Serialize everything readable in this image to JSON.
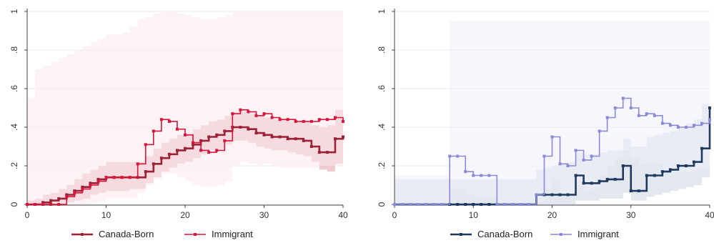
{
  "chart_data": [
    {
      "type": "line",
      "title": "",
      "xlabel": "",
      "ylabel": "",
      "xlim": [
        0,
        40
      ],
      "ylim": [
        0,
        1
      ],
      "xticks": [
        "0",
        "10",
        "20",
        "30",
        "40"
      ],
      "yticks": [
        "0",
        ".2",
        ".4",
        ".6",
        ".8",
        "1"
      ],
      "grid": true,
      "legend_position": "bottom",
      "series": [
        {
          "name": "Canada-Born",
          "color": "#9b2335",
          "band_color": "#e7b9bf",
          "x": [
            0,
            1,
            2,
            3,
            4,
            5,
            6,
            7,
            8,
            9,
            10,
            11,
            12,
            13,
            14,
            15,
            16,
            17,
            18,
            19,
            20,
            21,
            22,
            23,
            24,
            25,
            26,
            27,
            28,
            29,
            30,
            31,
            32,
            33,
            34,
            35,
            36,
            37,
            38,
            39,
            40
          ],
          "y": [
            0.0,
            0.0,
            0.01,
            0.02,
            0.03,
            0.05,
            0.07,
            0.09,
            0.11,
            0.13,
            0.14,
            0.14,
            0.14,
            0.14,
            0.14,
            0.17,
            0.21,
            0.24,
            0.26,
            0.28,
            0.29,
            0.31,
            0.33,
            0.35,
            0.36,
            0.38,
            0.4,
            0.4,
            0.39,
            0.37,
            0.36,
            0.35,
            0.35,
            0.34,
            0.34,
            0.33,
            0.3,
            0.27,
            0.27,
            0.34,
            0.35
          ],
          "ci_lower": [
            0.0,
            0.0,
            0.0,
            0.0,
            0.0,
            0.01,
            0.02,
            0.03,
            0.05,
            0.06,
            0.07,
            0.07,
            0.07,
            0.08,
            0.08,
            0.11,
            0.14,
            0.17,
            0.19,
            0.21,
            0.22,
            0.24,
            0.26,
            0.28,
            0.29,
            0.31,
            0.33,
            0.33,
            0.32,
            0.3,
            0.29,
            0.28,
            0.28,
            0.27,
            0.26,
            0.25,
            0.22,
            0.18,
            0.17,
            0.21,
            0.21
          ],
          "ci_upper": [
            0.02,
            0.03,
            0.05,
            0.06,
            0.08,
            0.1,
            0.13,
            0.16,
            0.18,
            0.2,
            0.22,
            0.22,
            0.22,
            0.22,
            0.22,
            0.25,
            0.29,
            0.32,
            0.34,
            0.36,
            0.37,
            0.39,
            0.41,
            0.43,
            0.44,
            0.46,
            0.48,
            0.48,
            0.47,
            0.46,
            0.45,
            0.44,
            0.44,
            0.43,
            0.43,
            0.43,
            0.41,
            0.4,
            0.41,
            0.49,
            0.5
          ]
        },
        {
          "name": "Immigrant",
          "color": "#d6163c",
          "band_color": "#fbe9ec",
          "x": [
            0,
            1,
            2,
            3,
            4,
            5,
            6,
            7,
            8,
            9,
            10,
            11,
            12,
            13,
            14,
            15,
            16,
            17,
            18,
            19,
            20,
            21,
            22,
            23,
            24,
            25,
            26,
            27,
            28,
            29,
            30,
            31,
            32,
            33,
            34,
            35,
            36,
            37,
            38,
            39,
            40
          ],
          "y": [
            0.0,
            0.0,
            0.0,
            0.0,
            0.0,
            0.04,
            0.06,
            0.08,
            0.1,
            0.12,
            0.14,
            0.14,
            0.14,
            0.14,
            0.21,
            0.31,
            0.38,
            0.44,
            0.43,
            0.39,
            0.36,
            0.32,
            0.28,
            0.27,
            0.28,
            0.33,
            0.47,
            0.49,
            0.48,
            0.46,
            0.47,
            0.45,
            0.44,
            0.44,
            0.43,
            0.43,
            0.43,
            0.44,
            0.44,
            0.45,
            0.43
          ],
          "ci_lower": [
            0.0,
            0.0,
            0.0,
            0.0,
            0.0,
            0.0,
            0.0,
            0.0,
            0.01,
            0.02,
            0.03,
            0.03,
            0.03,
            0.03,
            0.06,
            0.1,
            0.13,
            0.16,
            0.16,
            0.14,
            0.12,
            0.1,
            0.09,
            0.09,
            0.1,
            0.12,
            0.2,
            0.22,
            0.21,
            0.2,
            0.21,
            0.2,
            0.19,
            0.19,
            0.19,
            0.19,
            0.19,
            0.2,
            0.2,
            0.2,
            0.19
          ],
          "ci_upper": [
            0.55,
            0.7,
            0.72,
            0.74,
            0.76,
            0.78,
            0.8,
            0.82,
            0.84,
            0.86,
            0.88,
            0.88,
            0.89,
            0.92,
            0.96,
            0.97,
            0.99,
            1.0,
            1.0,
            0.99,
            0.98,
            0.97,
            0.96,
            0.96,
            0.97,
            0.98,
            1.0,
            1.0,
            1.0,
            1.0,
            1.0,
            1.0,
            1.0,
            1.0,
            1.0,
            1.0,
            1.0,
            1.0,
            1.0,
            1.0,
            1.0
          ]
        }
      ]
    },
    {
      "type": "line",
      "title": "",
      "xlabel": "",
      "ylabel": "",
      "xlim": [
        0,
        40
      ],
      "ylim": [
        0,
        1
      ],
      "xticks": [
        "0",
        "10",
        "20",
        "30",
        "40"
      ],
      "yticks": [
        "0",
        ".2",
        ".4",
        ".6",
        ".8",
        "1"
      ],
      "grid": true,
      "legend_position": "bottom",
      "series": [
        {
          "name": "Canada-Born",
          "color": "#1f3a5f",
          "band_color": "#d9e0ea",
          "x": [
            0,
            1,
            2,
            3,
            4,
            5,
            6,
            7,
            8,
            9,
            10,
            11,
            12,
            13,
            14,
            15,
            16,
            17,
            18,
            19,
            20,
            21,
            22,
            23,
            24,
            25,
            26,
            27,
            28,
            29,
            30,
            31,
            32,
            33,
            34,
            35,
            36,
            37,
            38,
            39,
            40
          ],
          "y": [
            0.0,
            0.0,
            0.0,
            0.0,
            0.0,
            0.0,
            0.0,
            0.0,
            0.0,
            0.0,
            0.0,
            0.0,
            0.0,
            0.0,
            0.0,
            0.0,
            0.0,
            0.0,
            0.05,
            0.05,
            0.05,
            0.05,
            0.05,
            0.15,
            0.11,
            0.11,
            0.12,
            0.13,
            0.13,
            0.2,
            0.07,
            0.07,
            0.15,
            0.15,
            0.17,
            0.18,
            0.2,
            0.2,
            0.22,
            0.29,
            0.5
          ],
          "ci_lower": [
            0.0,
            0.0,
            0.0,
            0.0,
            0.0,
            0.0,
            0.0,
            0.0,
            0.0,
            0.0,
            0.0,
            0.0,
            0.0,
            0.0,
            0.0,
            0.0,
            0.0,
            0.0,
            0.0,
            0.0,
            0.0,
            0.0,
            0.0,
            0.02,
            0.02,
            0.02,
            0.03,
            0.03,
            0.03,
            0.06,
            0.02,
            0.02,
            0.04,
            0.05,
            0.06,
            0.07,
            0.08,
            0.09,
            0.1,
            0.14,
            0.25
          ],
          "ci_upper": [
            0.13,
            0.13,
            0.13,
            0.13,
            0.13,
            0.13,
            0.13,
            0.13,
            0.13,
            0.13,
            0.13,
            0.13,
            0.13,
            0.13,
            0.13,
            0.13,
            0.13,
            0.13,
            0.18,
            0.19,
            0.2,
            0.21,
            0.22,
            0.27,
            0.26,
            0.26,
            0.27,
            0.28,
            0.28,
            0.34,
            0.3,
            0.3,
            0.35,
            0.36,
            0.37,
            0.38,
            0.4,
            0.42,
            0.44,
            0.52,
            0.75
          ]
        },
        {
          "name": "Immigrant",
          "color": "#8a8ad6",
          "band_color": "#eeeef9",
          "x": [
            0,
            1,
            2,
            3,
            4,
            5,
            6,
            7,
            8,
            9,
            10,
            11,
            12,
            13,
            14,
            15,
            16,
            17,
            18,
            19,
            20,
            21,
            22,
            23,
            24,
            25,
            26,
            27,
            28,
            29,
            30,
            31,
            32,
            33,
            34,
            35,
            36,
            37,
            38,
            39,
            40
          ],
          "y": [
            0.0,
            0.0,
            0.0,
            0.0,
            0.0,
            0.0,
            0.0,
            0.25,
            0.25,
            0.17,
            0.15,
            0.15,
            0.15,
            0.0,
            0.0,
            0.0,
            0.0,
            0.0,
            0.05,
            0.25,
            0.35,
            0.21,
            0.2,
            0.28,
            0.23,
            0.25,
            0.38,
            0.45,
            0.5,
            0.55,
            0.5,
            0.46,
            0.47,
            0.46,
            0.42,
            0.41,
            0.4,
            0.4,
            0.41,
            0.42,
            0.44
          ],
          "ci_lower": [
            0.0,
            0.0,
            0.0,
            0.0,
            0.0,
            0.0,
            0.0,
            0.08,
            0.08,
            0.05,
            0.04,
            0.04,
            0.04,
            0.0,
            0.0,
            0.0,
            0.0,
            0.0,
            0.01,
            0.08,
            0.13,
            0.06,
            0.06,
            0.1,
            0.07,
            0.08,
            0.15,
            0.2,
            0.24,
            0.28,
            0.24,
            0.21,
            0.22,
            0.21,
            0.18,
            0.17,
            0.17,
            0.17,
            0.18,
            0.19,
            0.2
          ],
          "ci_upper": [
            0.15,
            0.15,
            0.15,
            0.15,
            0.15,
            0.15,
            0.15,
            0.95,
            0.95,
            0.95,
            0.95,
            0.95,
            0.95,
            0.95,
            0.95,
            0.95,
            0.95,
            0.95,
            0.95,
            0.95,
            0.95,
            0.95,
            0.95,
            0.95,
            0.95,
            0.95,
            0.95,
            0.95,
            0.95,
            0.95,
            0.95,
            0.95,
            0.95,
            0.95,
            0.95,
            0.95,
            0.95,
            0.95,
            0.95,
            0.95,
            0.95
          ]
        }
      ]
    }
  ]
}
